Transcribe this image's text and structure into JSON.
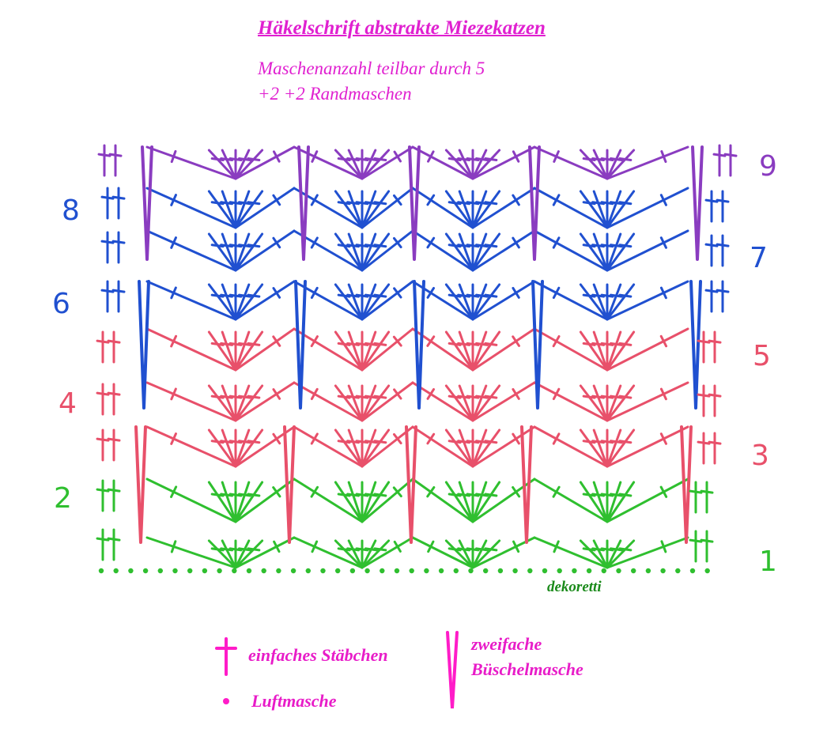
{
  "header": {
    "title": "Häkelschrift abstrakte Miezekatzen",
    "line1": "Maschenanzahl teilbar durch 5",
    "line2": "+2  +2  Randmaschen"
  },
  "credit": "dekoretti",
  "legend": {
    "stitch_dc": "einfaches Stäbchen",
    "stitch_ch": "Luftmasche",
    "stitch_cluster_line1": "zweifache",
    "stitch_cluster_line2": "Büschelmasche"
  },
  "row_numbers": [
    "1",
    "2",
    "3",
    "4",
    "5",
    "6",
    "7",
    "8",
    "9"
  ],
  "colors": {
    "pink_text": "#e020d0",
    "green": "#2fbf2f",
    "pink": "#e8506a",
    "blue": "#2050d0",
    "purple": "#8a3cc0",
    "credit_green": "#1a8a1a"
  },
  "icons": {
    "dc": "treble-cross-icon",
    "ch": "chain-dot-icon",
    "cluster": "v-cluster-icon"
  }
}
